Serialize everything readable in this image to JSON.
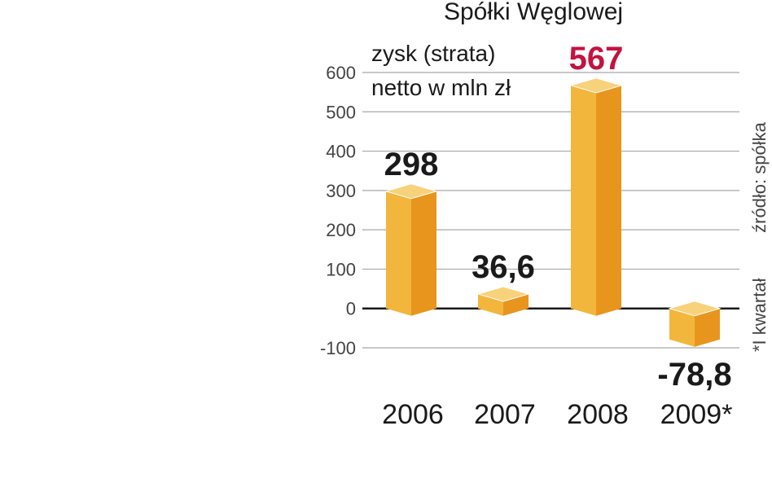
{
  "chart_data": {
    "type": "bar",
    "title": "Spółki Węglowej",
    "subtitle_lines": [
      "zysk (strata)",
      "netto w mln zł"
    ],
    "categories": [
      "2006",
      "2007",
      "2008",
      "2009*"
    ],
    "values": [
      298,
      36.6,
      567,
      -78.8
    ],
    "value_labels": [
      "298",
      "36,6",
      "567",
      "-78,8"
    ],
    "highlight_index": 2,
    "yticks": [
      600,
      500,
      400,
      300,
      200,
      100,
      0,
      -100
    ],
    "ylim": [
      -100,
      600
    ],
    "grid": true,
    "side_notes": [
      "*I kwartał",
      "źródło: spółka"
    ]
  },
  "colors": {
    "bar_front": "#f3b63c",
    "bar_side": "#e8951e",
    "bar_top": "#f8d27a",
    "highlight": "#c4133f",
    "grid": "#a8a8a8",
    "zero_line": "#1a1a1a"
  }
}
